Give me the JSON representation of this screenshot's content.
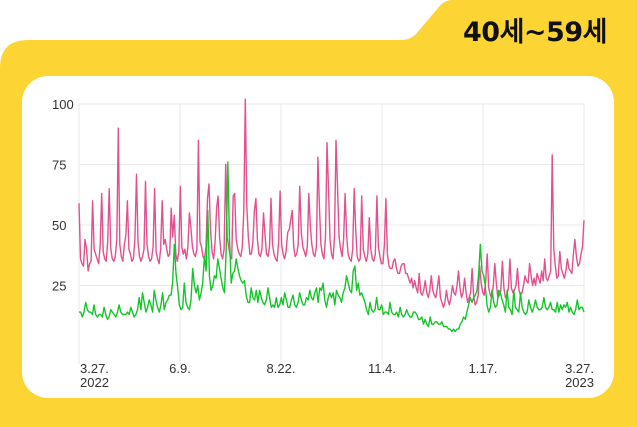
{
  "header": {
    "title": "40세~59세"
  },
  "colors": {
    "frame": "#fcd535",
    "background": "#ffffff",
    "grid": "#e9e9e9",
    "pink": "#e2508f",
    "green": "#16c42a"
  },
  "chart_data": {
    "type": "line",
    "title": "",
    "xlabel": "",
    "ylabel": "",
    "ylim": [
      0,
      100
    ],
    "yticks": [
      25,
      50,
      75,
      100
    ],
    "xticks": [
      {
        "label": "3.27.",
        "year": "2022"
      },
      {
        "label": "6.9.",
        "year": ""
      },
      {
        "label": "8.22.",
        "year": ""
      },
      {
        "label": "11.4.",
        "year": ""
      },
      {
        "label": "1.17.",
        "year": ""
      },
      {
        "label": "3.27.",
        "year": "2023"
      }
    ],
    "grid": true,
    "legend": "none",
    "series": [
      {
        "color": "#e2508f",
        "values": [
          59,
          36,
          34,
          33,
          44,
          40,
          31,
          34,
          35,
          60,
          40,
          38,
          36,
          34,
          42,
          63,
          39,
          36,
          35,
          43,
          65,
          40,
          36,
          35,
          37,
          44,
          90,
          42,
          37,
          35,
          42,
          46,
          60,
          40,
          38,
          35,
          36,
          44,
          71,
          43,
          37,
          35,
          37,
          40,
          68,
          42,
          37,
          35,
          36,
          41,
          65,
          39,
          36,
          34,
          40,
          60,
          42,
          44,
          40,
          37,
          38,
          57,
          45,
          54,
          38,
          35,
          39,
          66,
          41,
          38,
          40,
          36,
          41,
          55,
          49,
          41,
          38,
          37,
          40,
          85,
          43,
          41,
          37,
          36,
          41,
          61,
          67,
          48,
          39,
          36,
          43,
          57,
          62,
          45,
          38,
          36,
          40,
          75,
          45,
          41,
          37,
          36,
          62,
          63,
          44,
          40,
          38,
          37,
          41,
          56,
          102,
          58,
          45,
          38,
          38,
          43,
          56,
          61,
          44,
          38,
          37,
          40,
          55,
          46,
          38,
          37,
          41,
          61,
          42,
          38,
          36,
          35,
          43,
          64,
          42,
          38,
          36,
          39,
          47,
          48,
          52,
          56,
          41,
          37,
          38,
          42,
          66,
          47,
          41,
          39,
          37,
          41,
          63,
          50,
          42,
          38,
          37,
          41,
          78,
          58,
          42,
          38,
          36,
          45,
          84,
          65,
          44,
          38,
          36,
          45,
          85,
          66,
          45,
          40,
          37,
          44,
          63,
          46,
          38,
          36,
          35,
          40,
          65,
          48,
          37,
          35,
          36,
          62,
          40,
          37,
          35,
          38,
          53,
          40,
          36,
          35,
          38,
          62,
          41,
          37,
          34,
          34,
          42,
          61,
          38,
          33,
          32,
          32,
          35,
          36,
          32,
          30,
          30,
          33,
          34,
          34,
          30,
          30,
          28,
          26,
          28,
          24,
          27,
          24,
          22,
          30,
          22,
          21,
          23,
          27,
          22,
          20,
          23,
          29,
          23,
          21,
          20,
          24,
          29,
          20,
          18,
          16,
          18,
          23,
          19,
          17,
          20,
          25,
          22,
          21,
          25,
          31,
          24,
          20,
          22,
          28,
          22,
          18,
          20,
          22,
          32,
          21,
          17,
          18,
          21,
          33,
          26,
          22,
          21,
          27,
          38,
          24,
          21,
          20,
          25,
          34,
          26,
          20,
          21,
          23,
          35,
          24,
          20,
          21,
          24,
          36,
          24,
          22,
          23,
          25,
          32,
          23,
          21,
          22,
          25,
          29,
          27,
          26,
          34,
          29,
          25,
          28,
          25,
          30,
          28,
          26,
          31,
          27,
          36,
          28,
          27,
          29,
          31,
          79,
          40,
          33,
          28,
          29,
          39,
          32,
          30,
          28,
          31,
          36,
          32,
          31,
          30,
          38,
          44,
          37,
          33,
          34,
          38,
          41,
          52
        ]
      },
      {
        "color": "#16c42a",
        "values": [
          14,
          14,
          12,
          14,
          18,
          15,
          14,
          14,
          13,
          17,
          13,
          12,
          13,
          13,
          12,
          16,
          13,
          11,
          12,
          15,
          14,
          13,
          12,
          14,
          17,
          14,
          13,
          13,
          13,
          14,
          13,
          16,
          14,
          12,
          13,
          15,
          20,
          15,
          22,
          18,
          14,
          16,
          19,
          17,
          14,
          23,
          19,
          16,
          14,
          17,
          22,
          15,
          18,
          19,
          21,
          21,
          26,
          42,
          30,
          24,
          17,
          15,
          16,
          26,
          18,
          16,
          15,
          19,
          32,
          25,
          22,
          25,
          19,
          22,
          26,
          37,
          31,
          56,
          29,
          23,
          25,
          29,
          28,
          36,
          32,
          28,
          24,
          22,
          40,
          76,
          44,
          26,
          30,
          31,
          36,
          32,
          29,
          27,
          26,
          27,
          21,
          18,
          18,
          24,
          20,
          19,
          23,
          18,
          23,
          20,
          18,
          17,
          19,
          24,
          20,
          16,
          17,
          16,
          20,
          16,
          17,
          20,
          17,
          22,
          19,
          16,
          16,
          19,
          21,
          17,
          16,
          18,
          22,
          19,
          17,
          17,
          20,
          19,
          23,
          20,
          19,
          22,
          24,
          18,
          24,
          23,
          26,
          19,
          16,
          20,
          22,
          20,
          22,
          17,
          23,
          21,
          20,
          18,
          22,
          24,
          29,
          26,
          23,
          22,
          31,
          33,
          23,
          26,
          21,
          22,
          20,
          18,
          15,
          13,
          18,
          15,
          14,
          15,
          20,
          15,
          15,
          17,
          13,
          14,
          14,
          13,
          18,
          14,
          13,
          13,
          14,
          12,
          16,
          13,
          12,
          13,
          15,
          13,
          12,
          12,
          14,
          14,
          13,
          11,
          11,
          12,
          9,
          11,
          9,
          8,
          12,
          9,
          9,
          10,
          10,
          9,
          9,
          10,
          8,
          8,
          8,
          7,
          7,
          6,
          7,
          6,
          7,
          7,
          9,
          10,
          12,
          11,
          14,
          17,
          20,
          18,
          20,
          21,
          23,
          30,
          42,
          31,
          29,
          25,
          17,
          14,
          16,
          23,
          18,
          16,
          17,
          23,
          22,
          19,
          17,
          14,
          23,
          16,
          15,
          13,
          23,
          16,
          15,
          14,
          22,
          16,
          14,
          13,
          14,
          19,
          16,
          14,
          16,
          19,
          16,
          15,
          15,
          16,
          20,
          16,
          15,
          16,
          18,
          15,
          15,
          14,
          18,
          14,
          17,
          15,
          17,
          16,
          18,
          14,
          16,
          14,
          13,
          15,
          19,
          15,
          16,
          16,
          14
        ]
      }
    ]
  }
}
